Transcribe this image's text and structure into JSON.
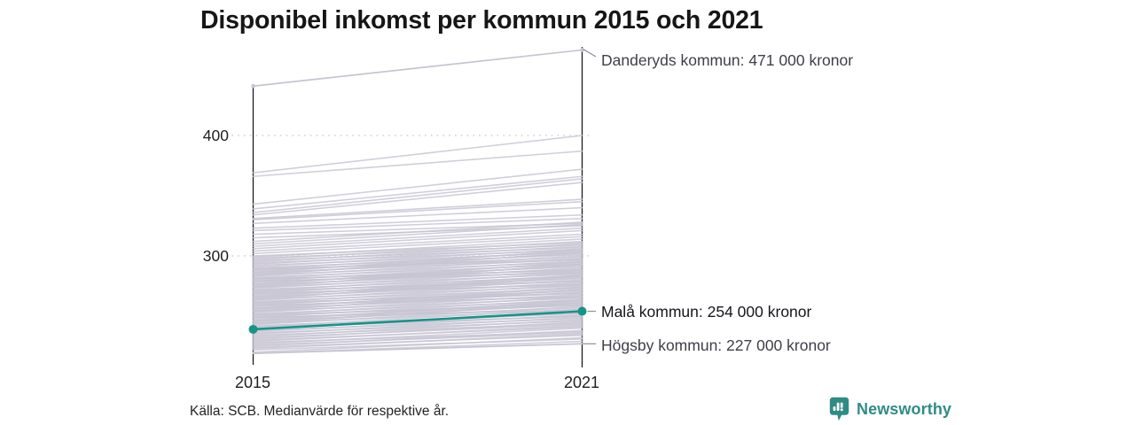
{
  "title": "Disponibel inkomst per kommun 2015 och 2021",
  "axis": {
    "yticks": [
      "400",
      "300"
    ],
    "xticks": [
      "2015",
      "2021"
    ]
  },
  "footer": {
    "source": "Källa: SCB. Medianvärde för respektive år.",
    "brand": "Newsworthy"
  },
  "colors": {
    "highlight": "#169488",
    "background_line": "#c7c4d3",
    "axis": "#1c1c1c",
    "grid": "#d6d6d6",
    "connector": "#8f8f8f",
    "brand_teal": "#2f8c84"
  },
  "chart_data": {
    "type": "line",
    "subtype": "slope",
    "title": "Disponibel inkomst per kommun 2015 och 2021",
    "x": [
      2015,
      2021
    ],
    "unit": "tusen kronor (medianvärde disponibel inkomst)",
    "ylim": [
      210,
      480
    ],
    "yticks": [
      300,
      400
    ],
    "grid": "dotted-horizontal",
    "legend": "none",
    "highlight_color": "#169488",
    "line_color": "#c7c4d3",
    "series": [
      {
        "name": "Danderyds kommun",
        "values": [
          441,
          471
        ],
        "style": "background-annotated",
        "callout": "Danderyds kommun: 471 000 kronor"
      },
      {
        "name": "Malå kommun",
        "values": [
          239,
          254
        ],
        "style": "highlight",
        "callout": "Malå kommun: 254 000 kronor"
      },
      {
        "name": "Högsby kommun",
        "values": [
          219,
          227
        ],
        "style": "background-annotated",
        "callout": "Högsby kommun: 227 000 kronor"
      }
    ],
    "background_pairs": [
      [
        369,
        400
      ],
      [
        366,
        387
      ],
      [
        343,
        372
      ],
      [
        339,
        366
      ],
      [
        336,
        364
      ],
      [
        334,
        361
      ],
      [
        331,
        347
      ],
      [
        330,
        345
      ],
      [
        327,
        340
      ],
      [
        323,
        334
      ],
      [
        321,
        331
      ],
      [
        318,
        327
      ],
      [
        315,
        325
      ],
      [
        219,
        229
      ],
      [
        220,
        232
      ],
      [
        222,
        231
      ],
      [
        223,
        235
      ],
      [
        224,
        234
      ],
      [
        225,
        238
      ],
      [
        226,
        236
      ],
      [
        227,
        240
      ],
      [
        228,
        237
      ],
      [
        229,
        242
      ],
      [
        230,
        241
      ],
      [
        231,
        245
      ],
      [
        232,
        243
      ],
      [
        233,
        247
      ],
      [
        234,
        244
      ],
      [
        235,
        249
      ],
      [
        236,
        246
      ],
      [
        237,
        251
      ],
      [
        238,
        248
      ],
      [
        239,
        253
      ],
      [
        240,
        250
      ],
      [
        241,
        256
      ],
      [
        242,
        252
      ],
      [
        243,
        258
      ],
      [
        244,
        255
      ],
      [
        245,
        260
      ],
      [
        246,
        257
      ],
      [
        247,
        262
      ],
      [
        248,
        259
      ],
      [
        249,
        264
      ],
      [
        250,
        261
      ],
      [
        251,
        266
      ],
      [
        252,
        263
      ],
      [
        253,
        268
      ],
      [
        254,
        265
      ],
      [
        255,
        270
      ],
      [
        256,
        267
      ],
      [
        257,
        272
      ],
      [
        258,
        269
      ],
      [
        259,
        274
      ],
      [
        260,
        271
      ],
      [
        261,
        276
      ],
      [
        262,
        273
      ],
      [
        263,
        278
      ],
      [
        264,
        275
      ],
      [
        265,
        280
      ],
      [
        266,
        277
      ],
      [
        267,
        282
      ],
      [
        268,
        279
      ],
      [
        269,
        284
      ],
      [
        270,
        281
      ],
      [
        271,
        286
      ],
      [
        272,
        283
      ],
      [
        273,
        288
      ],
      [
        274,
        285
      ],
      [
        275,
        290
      ],
      [
        276,
        287
      ],
      [
        277,
        292
      ],
      [
        278,
        289
      ],
      [
        279,
        294
      ],
      [
        280,
        291
      ],
      [
        281,
        296
      ],
      [
        282,
        293
      ],
      [
        283,
        298
      ],
      [
        284,
        295
      ],
      [
        285,
        300
      ],
      [
        286,
        297
      ],
      [
        287,
        302
      ],
      [
        288,
        299
      ],
      [
        289,
        304
      ],
      [
        290,
        301
      ],
      [
        291,
        306
      ],
      [
        292,
        303
      ],
      [
        293,
        308
      ],
      [
        294,
        305
      ],
      [
        295,
        310
      ],
      [
        296,
        307
      ],
      [
        297,
        312
      ],
      [
        298,
        309
      ],
      [
        299,
        314
      ],
      [
        300,
        311
      ],
      [
        302,
        316
      ],
      [
        304,
        318
      ],
      [
        306,
        321
      ],
      [
        308,
        323
      ],
      [
        310,
        326
      ],
      [
        312,
        328
      ],
      [
        241,
        250
      ],
      [
        246,
        263
      ],
      [
        251,
        259
      ],
      [
        256,
        274
      ],
      [
        261,
        269
      ],
      [
        266,
        284
      ],
      [
        271,
        279
      ],
      [
        276,
        295
      ],
      [
        281,
        288
      ],
      [
        286,
        305
      ],
      [
        244,
        261
      ],
      [
        249,
        255
      ],
      [
        254,
        272
      ],
      [
        259,
        266
      ],
      [
        264,
        283
      ],
      [
        269,
        276
      ],
      [
        274,
        293
      ],
      [
        279,
        286
      ],
      [
        284,
        303
      ],
      [
        289,
        297
      ]
    ]
  }
}
